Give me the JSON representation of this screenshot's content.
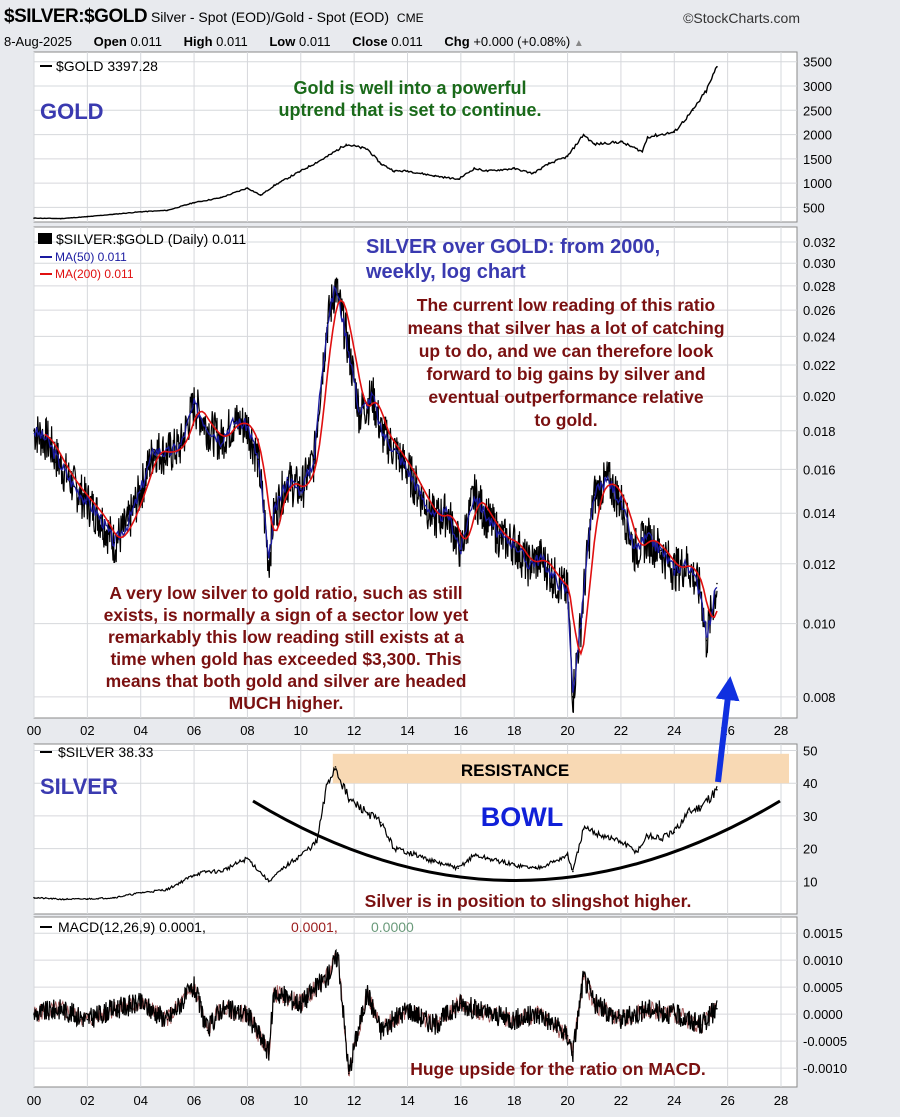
{
  "header": {
    "symbol": "$SILVER:$GOLD",
    "description": "Silver - Spot (EOD)/Gold - Spot (EOD)",
    "exchange": "CME",
    "brand": "©StockCharts.com",
    "date": "8-Aug-2025",
    "open_label": "Open",
    "open": "0.011",
    "high_label": "High",
    "high": "0.011",
    "low_label": "Low",
    "low": "0.011",
    "close_label": "Close",
    "close": "0.011",
    "chg_label": "Chg",
    "chg": "+0.000 (+0.08%)"
  },
  "colors": {
    "panel_bg": "#ffffff",
    "outer_bg": "#e8eaee",
    "price_line": "#000000",
    "ma50": "#1a1aa0",
    "ma200": "#e01010",
    "annotation_blue": "#3a3ab0",
    "annotation_green": "#1a6a1a",
    "annotation_maroon": "#7a1010",
    "resistance_band": "#f8d9b4",
    "arrow": "#1030e0"
  },
  "chart_data": [
    {
      "id": "gold",
      "type": "line",
      "legend": "$GOLD 3397.28",
      "panel_label": "GOLD",
      "annotation": [
        "Gold is well into a powerful",
        "uptrend that is set to continue."
      ],
      "yticks": [
        500,
        1000,
        1500,
        2000,
        2500,
        3000,
        3500
      ],
      "ylim": [
        200,
        3700
      ],
      "xlim": [
        2000,
        2028.6
      ],
      "x": [
        2000,
        2001,
        2002,
        2003,
        2004,
        2005,
        2006,
        2007,
        2008,
        2008.5,
        2009,
        2010,
        2011,
        2011.7,
        2012.5,
        2013,
        2013.5,
        2014,
        2015,
        2015.9,
        2016.5,
        2017,
        2018,
        2018.7,
        2019.3,
        2020,
        2020.6,
        2021,
        2022,
        2022.8,
        2023,
        2024,
        2024.7,
        2025.2,
        2025.6
      ],
      "values": [
        280,
        270,
        310,
        360,
        410,
        440,
        600,
        700,
        900,
        750,
        950,
        1250,
        1550,
        1800,
        1700,
        1400,
        1250,
        1250,
        1150,
        1080,
        1300,
        1250,
        1300,
        1200,
        1400,
        1550,
        2000,
        1800,
        1850,
        1650,
        1950,
        2050,
        2500,
        2900,
        3397
      ]
    },
    {
      "id": "ratio",
      "type": "line",
      "scale": "log",
      "legend": "$SILVER:$GOLD (Daily) 0.011",
      "ma50_label": "MA(50) 0.011",
      "ma200_label": "MA(200) 0.011",
      "heading": [
        "SILVER over GOLD: from 2000,",
        "weekly, log chart"
      ],
      "annotation_top": [
        "The current low reading of this ratio",
        "means that silver has a lot of catching",
        "up to do, and we can therefore look",
        "forward to big gains by silver and",
        "eventual outperformance relative",
        "to gold."
      ],
      "annotation_bottom": [
        "A very low silver to  gold ratio, such as still",
        "exists, is normally a sign of a sector low yet",
        "remarkably this low reading still exists at a",
        "time when gold has exceeded  $3,300. This",
        "means that both gold and silver are headed",
        "MUCH higher."
      ],
      "yticks": [
        0.008,
        0.01,
        0.012,
        0.014,
        0.016,
        0.018,
        0.02,
        0.022,
        0.024,
        0.026,
        0.028,
        0.03,
        0.032
      ],
      "ytick_labels": [
        "0.008",
        "0.010",
        "0.012",
        "0.014",
        "0.016",
        "0.018",
        "0.020",
        "0.022",
        "0.024",
        "0.026",
        "0.028",
        "0.030",
        "0.032"
      ],
      "ylim": [
        0.0075,
        0.0335
      ],
      "xlim": [
        2000,
        2028.6
      ],
      "x": [
        2000,
        2000.5,
        2001,
        2001.5,
        2002,
        2002.5,
        2003,
        2003.5,
        2004,
        2004.5,
        2005,
        2005.5,
        2006,
        2006.5,
        2007,
        2007.5,
        2008,
        2008.4,
        2008.8,
        2009,
        2009.5,
        2010,
        2010.5,
        2011,
        2011.3,
        2011.8,
        2012.2,
        2012.7,
        2013,
        2013.5,
        2014,
        2014.5,
        2015,
        2015.5,
        2016,
        2016.5,
        2017,
        2017.5,
        2018,
        2018.5,
        2019,
        2019.5,
        2020,
        2020.2,
        2020.5,
        2021,
        2021.5,
        2022,
        2022.5,
        2023,
        2023.5,
        2024,
        2024.5,
        2025,
        2025.2,
        2025.6
      ],
      "values": [
        0.018,
        0.0175,
        0.0162,
        0.0152,
        0.0145,
        0.0138,
        0.0128,
        0.0135,
        0.015,
        0.017,
        0.0168,
        0.0172,
        0.0195,
        0.0182,
        0.0175,
        0.0185,
        0.0183,
        0.0165,
        0.012,
        0.014,
        0.0155,
        0.015,
        0.0165,
        0.025,
        0.028,
        0.023,
        0.019,
        0.02,
        0.018,
        0.017,
        0.016,
        0.0148,
        0.0138,
        0.014,
        0.0125,
        0.0148,
        0.0138,
        0.013,
        0.0128,
        0.012,
        0.0122,
        0.0115,
        0.011,
        0.008,
        0.01,
        0.0148,
        0.0155,
        0.0145,
        0.0125,
        0.013,
        0.0125,
        0.0118,
        0.012,
        0.011,
        0.0095,
        0.0113
      ]
    },
    {
      "id": "silver",
      "type": "line",
      "legend": "$SILVER 38.33",
      "panel_label": "SILVER",
      "resistance_label": "RESISTANCE",
      "resistance_range": [
        40,
        49
      ],
      "bowl_label": "BOWL",
      "annotation": "Silver is in position to slingshot higher.",
      "yticks": [
        10,
        20,
        30,
        40,
        50
      ],
      "ylim": [
        0,
        52
      ],
      "xlim": [
        2000,
        2028.6
      ],
      "x": [
        2000,
        2001,
        2002,
        2003,
        2004,
        2005,
        2006,
        2006.5,
        2007,
        2008,
        2008.8,
        2009.5,
        2010,
        2010.6,
        2011,
        2011.3,
        2011.8,
        2012.5,
        2013,
        2013.5,
        2014,
        2015,
        2015.9,
        2016.5,
        2017,
        2018,
        2018.8,
        2019.5,
        2020,
        2020.2,
        2020.6,
        2021,
        2022,
        2022.6,
        2023,
        2023.5,
        2024,
        2024.5,
        2025,
        2025.6
      ],
      "values": [
        5,
        4.5,
        4.6,
        5,
        6.5,
        7.5,
        12,
        13,
        13,
        17,
        10,
        15,
        18,
        22,
        40,
        45,
        35,
        31,
        28,
        20,
        19,
        16,
        14,
        18,
        17,
        15,
        14,
        16,
        18,
        13,
        26,
        25,
        22,
        19,
        24,
        23,
        25,
        31,
        33,
        38
      ]
    },
    {
      "id": "macd",
      "type": "line",
      "legend": "MACD(12,26,9) 0.0001, 0.0001, 0.0000",
      "legend_parts": [
        "MACD(12,26,9) 0.0001,",
        "0.0001,",
        "0.0000"
      ],
      "annotation": "Huge upside for the ratio on MACD.",
      "yticks": [
        -0.001,
        -0.0005,
        0.0,
        0.0005,
        0.001,
        0.0015
      ],
      "ytick_labels": [
        "-0.0010",
        "-0.0005",
        "0.0000",
        "0.0005",
        "0.0010",
        "0.0015"
      ],
      "ylim": [
        -0.00135,
        0.0018
      ],
      "xlim": [
        2000,
        2028.6
      ],
      "x": [
        2000,
        2001,
        2002,
        2003,
        2004,
        2005,
        2006,
        2006.5,
        2007,
        2008,
        2008.8,
        2009,
        2010,
        2011,
        2011.4,
        2011.8,
        2012,
        2012.5,
        2013,
        2014,
        2015,
        2016,
        2017,
        2018,
        2019,
        2020,
        2020.2,
        2020.6,
        2021,
        2022,
        2023,
        2024,
        2025,
        2025.6
      ],
      "values": [
        0.0,
        0.0001,
        -0.0001,
        0.0001,
        0.0002,
        -0.0001,
        0.0005,
        -0.0003,
        0.0001,
        0.0,
        -0.0007,
        0.0004,
        0.0002,
        0.0007,
        0.0011,
        -0.0011,
        -0.0006,
        0.0004,
        -0.0003,
        0.0001,
        -0.0002,
        0.0002,
        0.0,
        -0.0001,
        0.0,
        -0.0004,
        -0.0007,
        0.0007,
        0.0002,
        -0.0001,
        0.0001,
        0.0,
        -0.0002,
        0.0001
      ]
    }
  ],
  "xaxis": {
    "ticks": [
      2000,
      2002,
      2004,
      2006,
      2008,
      2010,
      2012,
      2014,
      2016,
      2018,
      2020,
      2022,
      2024,
      2026,
      2028
    ],
    "labels": [
      "00",
      "02",
      "04",
      "06",
      "08",
      "10",
      "12",
      "14",
      "16",
      "18",
      "20",
      "22",
      "24",
      "26",
      "28"
    ]
  }
}
